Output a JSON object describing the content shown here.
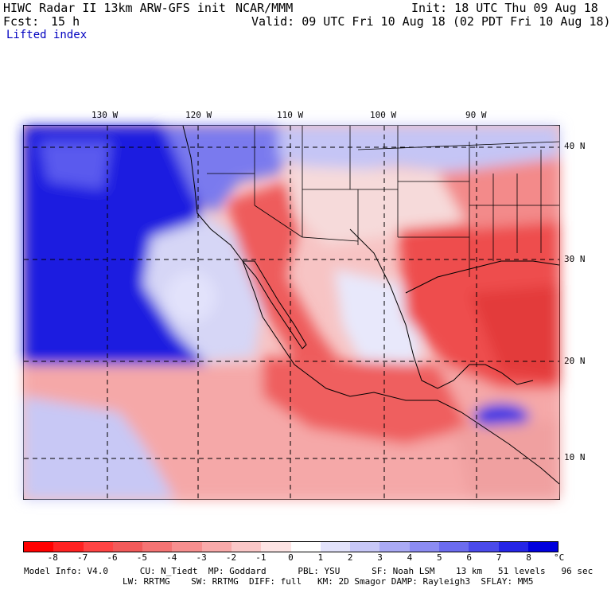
{
  "header": {
    "title": "HIWC Radar II 13km ARW-GFS init",
    "org": "NCAR/MMM",
    "init": "Init: 18 UTC Thu 09 Aug 18",
    "fcst_label": "Fcst:",
    "fcst_value": "15 h",
    "valid": "Valid: 09 UTC Fri 10 Aug 18 (02 PDT Fri 10 Aug 18)",
    "field": "Lifted index"
  },
  "map": {
    "lon_labels": [
      "130 W",
      "120 W",
      "110 W",
      "100 W",
      "90 W"
    ],
    "lat_labels": [
      "40 N",
      "30 N",
      "20 N",
      "10 N"
    ]
  },
  "colorbar": {
    "ticks": [
      "-8",
      "-7",
      "-6",
      "-5",
      "-4",
      "-3",
      "-2",
      "-1",
      "0",
      "1",
      "2",
      "3",
      "4",
      "5",
      "6",
      "7",
      "8"
    ],
    "unit": "°C",
    "colors": [
      "#ff0000",
      "#ff2222",
      "#ff4444",
      "#f25a5a",
      "#f57474",
      "#f78f8f",
      "#f9aaaa",
      "#fbc8c8",
      "#fde4e4",
      "#ffffff",
      "#e2e2fb",
      "#c8c8f8",
      "#aaaaf5",
      "#8c8cf2",
      "#6c6cef",
      "#4a4aeb",
      "#2525e6",
      "#0000dd"
    ]
  },
  "model_info": {
    "line1": "Model Info: V4.0      CU: N_Tiedt  MP: Goddard      PBL: YSU      SF: Noah LSM    13 km   51 levels   96 sec",
    "line2": "LW: RRTMG    SW: RRTMG  DIFF: full   KM: 2D Smagor DAMP: Rayleigh3  SFLAY: MM5"
  }
}
